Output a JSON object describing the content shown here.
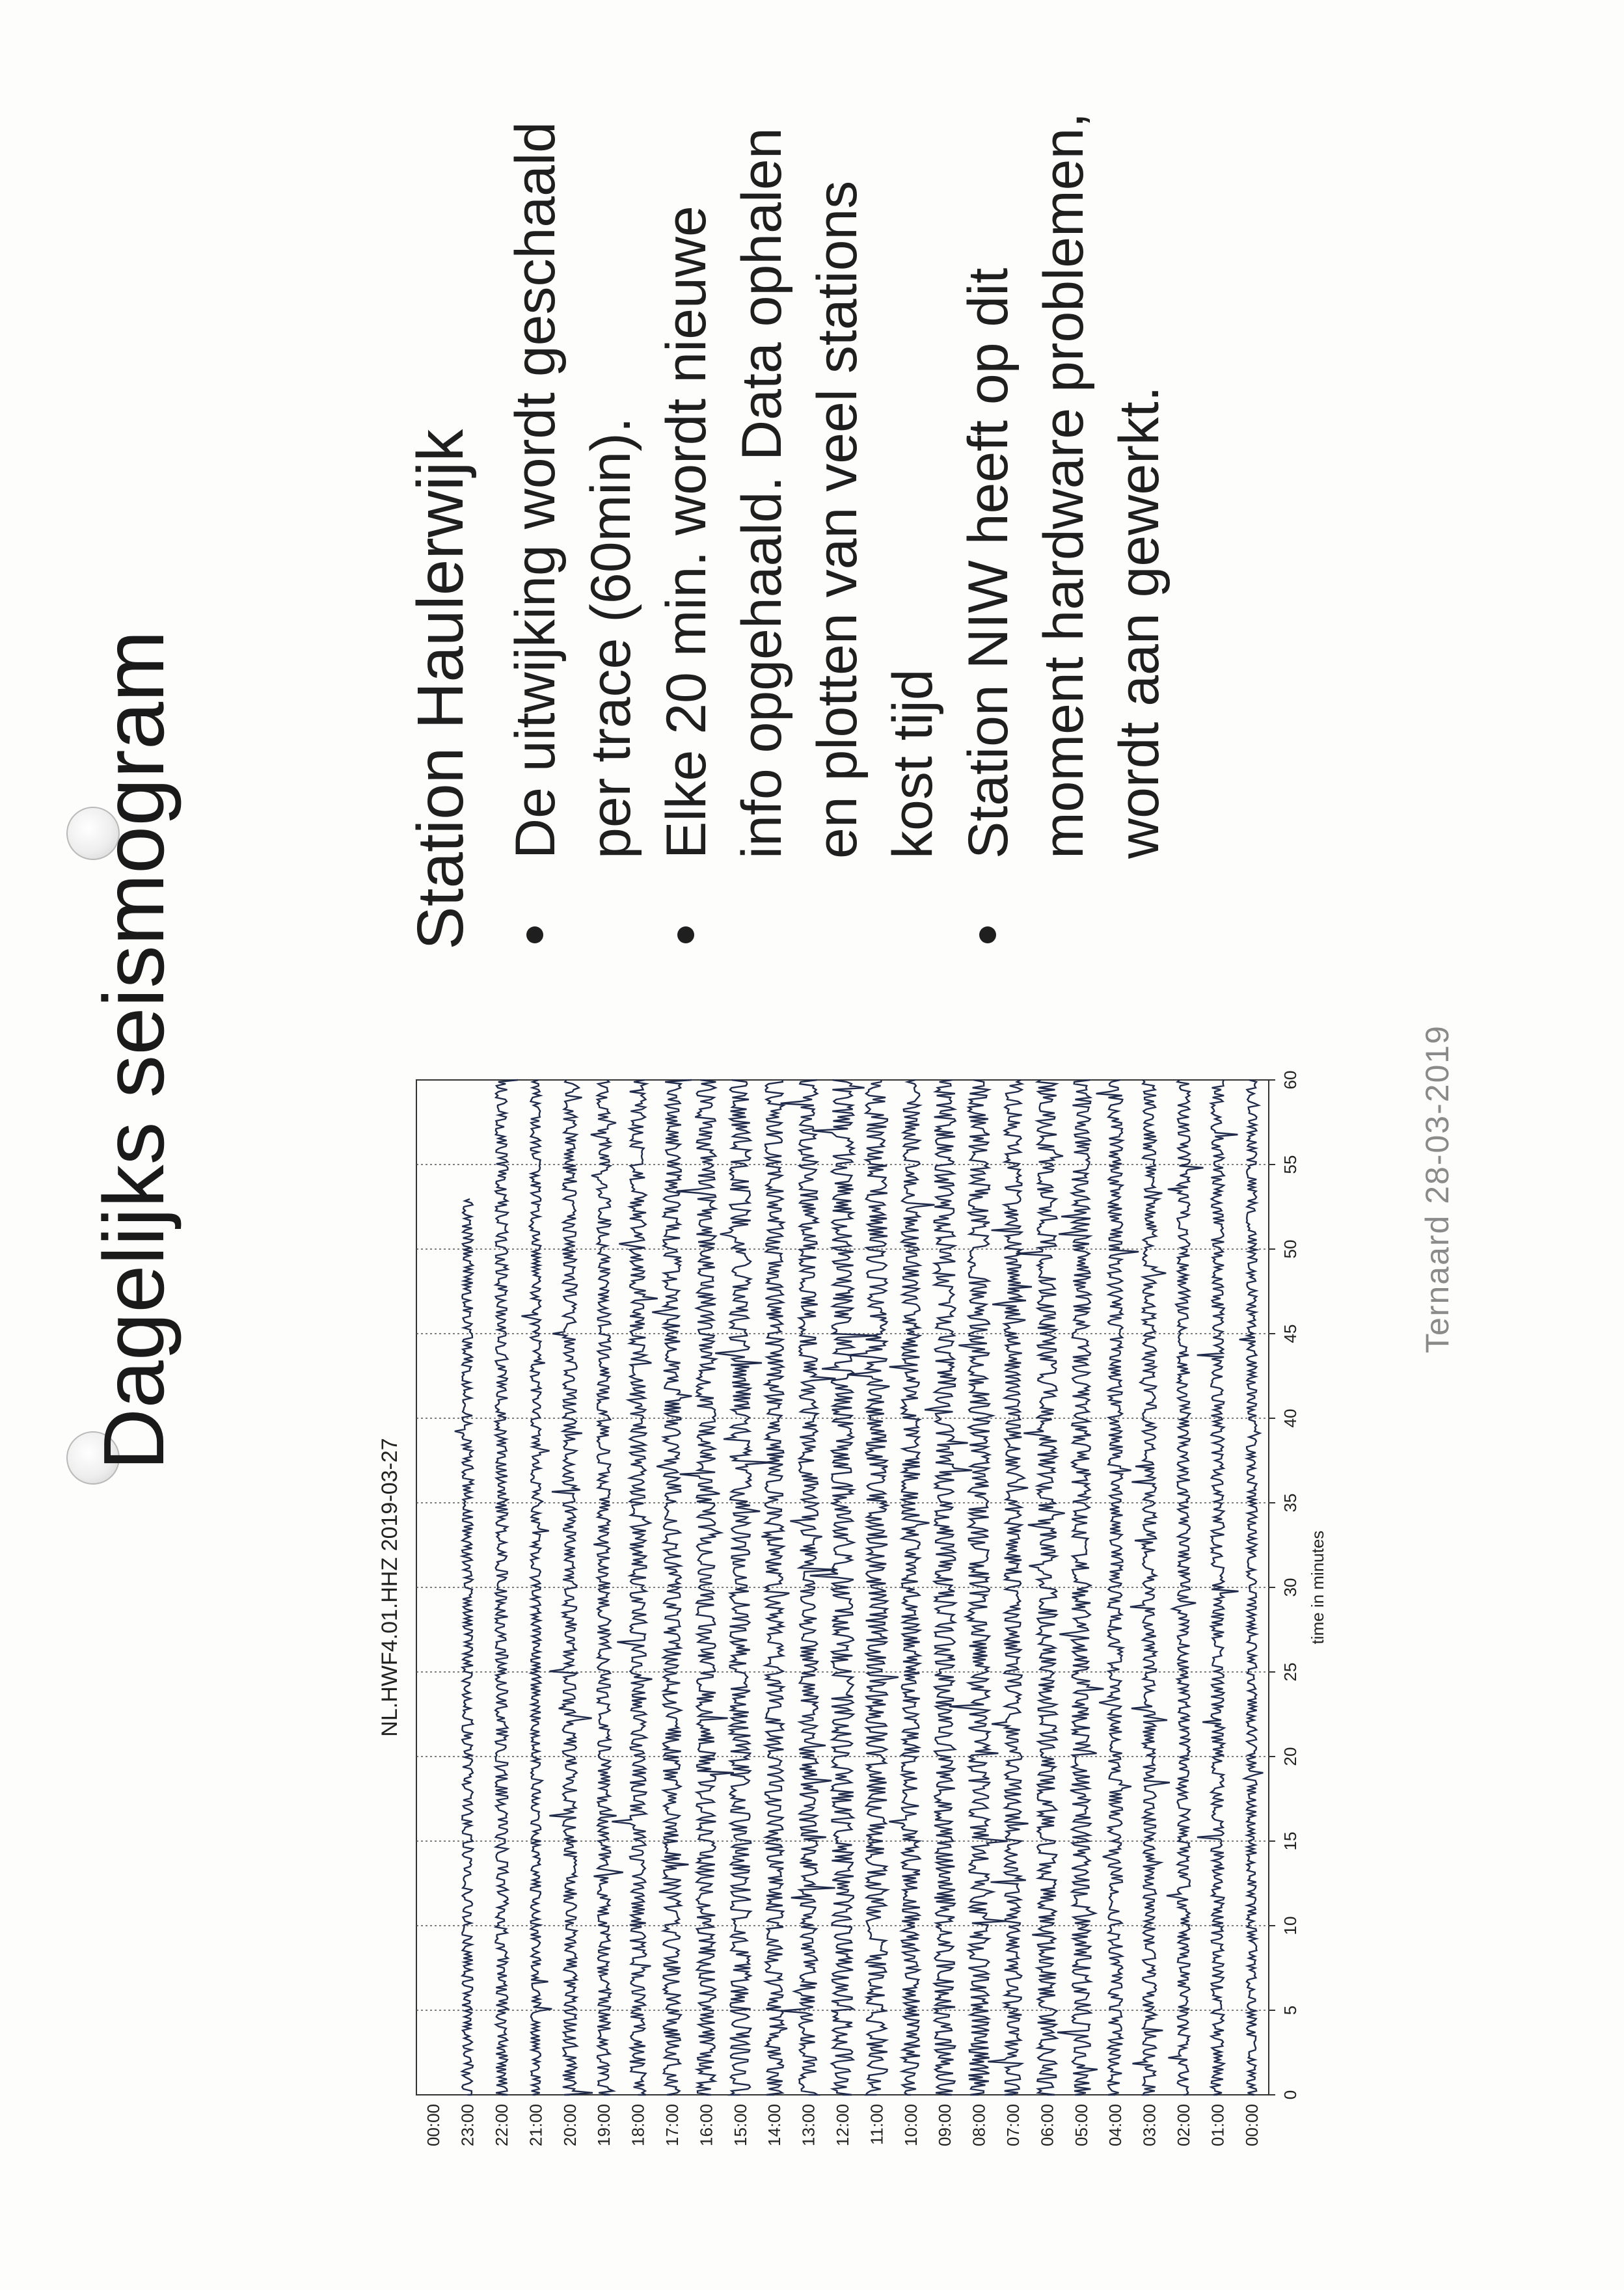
{
  "slide": {
    "title": "Dagelijks seismogram",
    "station_title": "Station Haulerwijk",
    "bullets": [
      "De uitwijking wordt geschaald per trace (60min).",
      "Elke 20 min. wordt nieuwe info opgehaald. Data ophalen en plotten van veel stations kost tijd",
      "Station NIW heeft op dit moment hardware problemen, wordt aan gewerkt."
    ],
    "footer": "Ternaard 28-03-2019"
  },
  "chart_data": {
    "type": "seismogram",
    "title": "NL.HWF4.01.HHZ 2019-03-27",
    "xlabel": "time in minutes",
    "ylabel": "",
    "xlim": [
      0,
      60
    ],
    "x_ticks": [
      0,
      5,
      10,
      15,
      20,
      25,
      30,
      35,
      40,
      45,
      50,
      55,
      60
    ],
    "grid": true,
    "trace_color": "#1f2a4a",
    "traces": [
      {
        "label": "00:00",
        "end_minute": 60
      },
      {
        "label": "01:00",
        "end_minute": 60
      },
      {
        "label": "02:00",
        "end_minute": 60
      },
      {
        "label": "03:00",
        "end_minute": 60
      },
      {
        "label": "04:00",
        "end_minute": 60
      },
      {
        "label": "05:00",
        "end_minute": 60
      },
      {
        "label": "06:00",
        "end_minute": 60
      },
      {
        "label": "07:00",
        "end_minute": 60
      },
      {
        "label": "08:00",
        "end_minute": 60
      },
      {
        "label": "09:00",
        "end_minute": 60
      },
      {
        "label": "10:00",
        "end_minute": 60
      },
      {
        "label": "11:00",
        "end_minute": 60
      },
      {
        "label": "12:00",
        "end_minute": 60
      },
      {
        "label": "13:00",
        "end_minute": 60
      },
      {
        "label": "14:00",
        "end_minute": 60
      },
      {
        "label": "15:00",
        "end_minute": 60
      },
      {
        "label": "16:00",
        "end_minute": 60
      },
      {
        "label": "17:00",
        "end_minute": 60
      },
      {
        "label": "18:00",
        "end_minute": 60
      },
      {
        "label": "19:00",
        "end_minute": 60
      },
      {
        "label": "20:00",
        "end_minute": 60
      },
      {
        "label": "21:00",
        "end_minute": 60
      },
      {
        "label": "22:00",
        "end_minute": 60
      },
      {
        "label": "23:00",
        "end_minute": 53
      },
      {
        "label": "00:00",
        "end_minute": 0
      }
    ]
  }
}
